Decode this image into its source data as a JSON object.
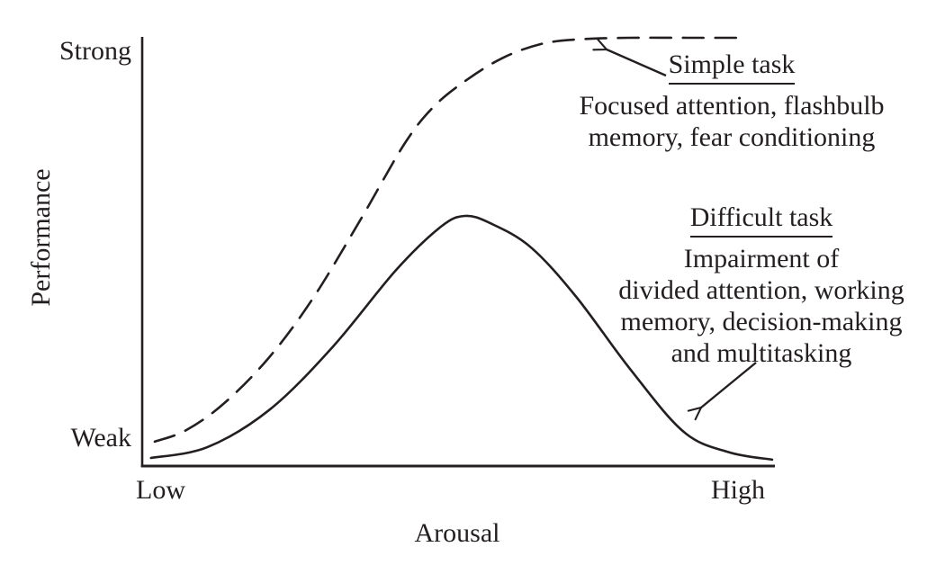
{
  "figure": {
    "background": "#ffffff",
    "ink_color": "#231f20"
  },
  "axes": {
    "ylabel": "Performance",
    "xlabel": "Arousal",
    "y_top_tick": "Strong",
    "y_bottom_tick": "Weak",
    "x_left_tick": "Low",
    "x_right_tick": "High"
  },
  "annotations": {
    "simple": {
      "title": "Simple task",
      "lines": [
        "Focused attention, flashbulb",
        "memory, fear conditioning"
      ]
    },
    "difficult": {
      "title": "Difficult task",
      "lines": [
        "Impairment of",
        "divided attention, working",
        "memory, decision-making",
        "and multitasking"
      ]
    }
  },
  "chart_data": {
    "type": "line",
    "title": "",
    "xlabel": "Arousal",
    "ylabel": "Performance",
    "x_tick_labels": [
      "Low",
      "High"
    ],
    "y_tick_labels": [
      "Weak",
      "Strong"
    ],
    "axes_numeric": false,
    "grid": false,
    "legend": "inline annotations with arrows",
    "x_range_norm": [
      0,
      1
    ],
    "y_range_norm": [
      0,
      1
    ],
    "series": [
      {
        "name": "Simple task",
        "line_style": "dashed",
        "description": "Focused attention, flashbulb memory, fear conditioning",
        "x": [
          0.02,
          0.07,
          0.13,
          0.2,
          0.27,
          0.345,
          0.415,
          0.462,
          0.515,
          0.572,
          0.63,
          0.687,
          0.77,
          0.87,
          0.958
        ],
        "y": [
          0.057,
          0.084,
          0.147,
          0.252,
          0.391,
          0.574,
          0.752,
          0.84,
          0.903,
          0.954,
          0.985,
          0.996,
          1.0,
          1.0,
          1.0
        ]
      },
      {
        "name": "Difficult task",
        "line_style": "solid",
        "description": "Impairment of divided attention, working memory, decision-making and multitasking",
        "x": [
          0.014,
          0.103,
          0.202,
          0.302,
          0.402,
          0.473,
          0.511,
          0.551,
          0.615,
          0.687,
          0.772,
          0.857,
          0.929,
          0.997
        ],
        "y": [
          0.019,
          0.044,
          0.132,
          0.279,
          0.458,
          0.559,
          0.584,
          0.567,
          0.511,
          0.395,
          0.227,
          0.08,
          0.032,
          0.015
        ]
      }
    ]
  }
}
